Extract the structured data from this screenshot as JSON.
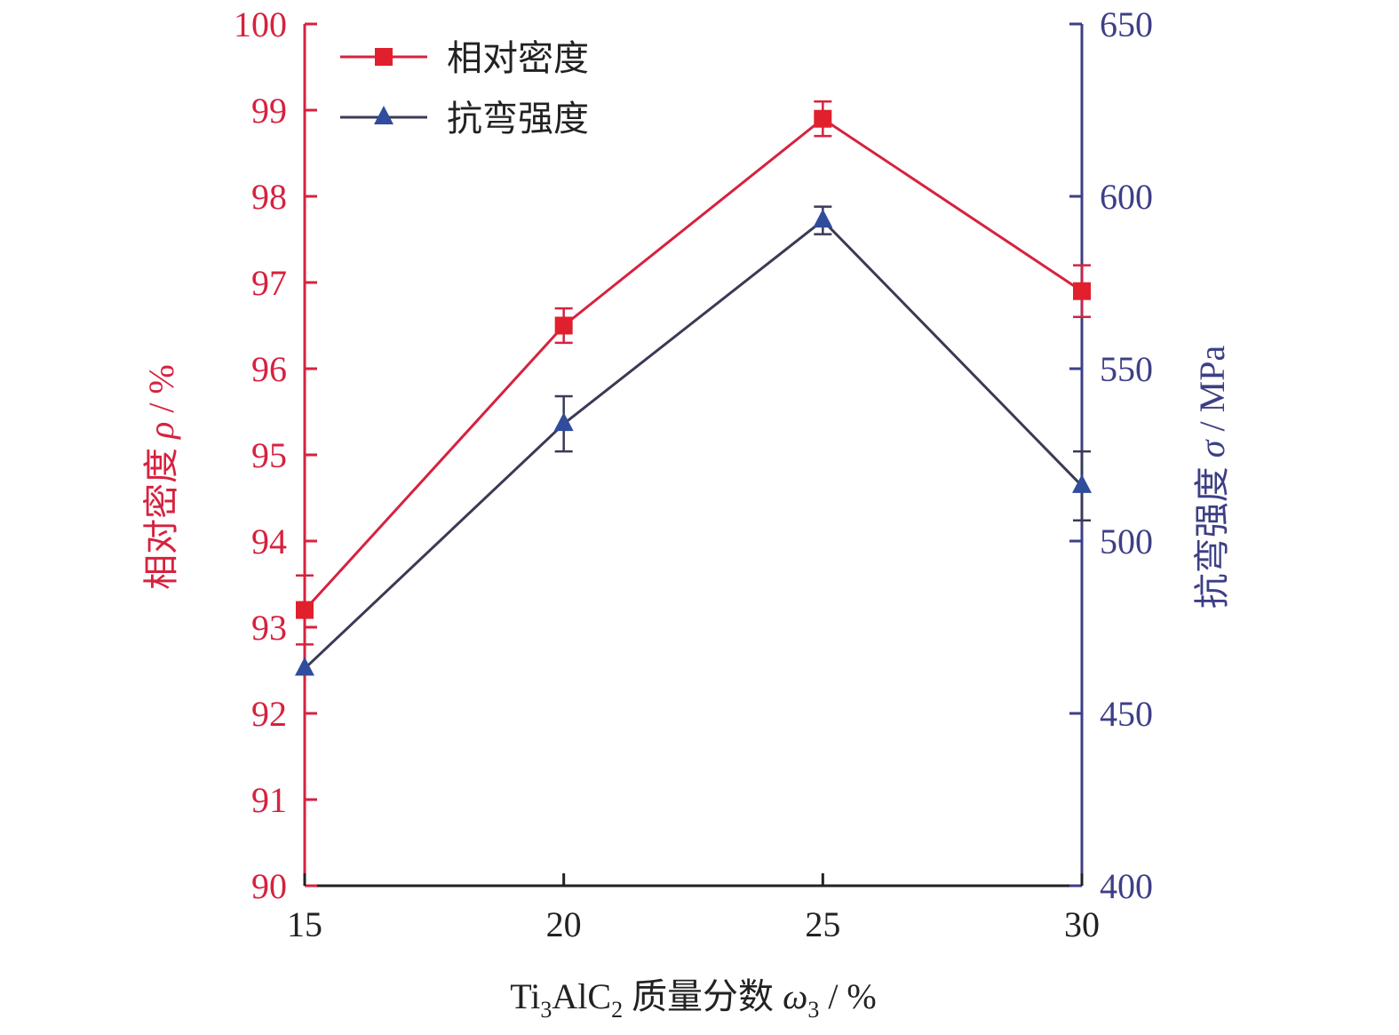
{
  "chart_data": {
    "type": "line",
    "x": [
      15,
      20,
      25,
      30
    ],
    "xlim": [
      15,
      30
    ],
    "x_ticks": [
      "15",
      "20",
      "25",
      "30"
    ],
    "xlabel": {
      "main": "Ti",
      "sub1": "3",
      "mid": "AlC",
      "sub2": "2",
      "rest": " 质量分数 ",
      "sym": "ω",
      "sub3": "3",
      "unit": " / %"
    },
    "y_left": {
      "label_text": "相对密度 ",
      "label_sym": "ρ",
      "label_unit": " / %",
      "lim": [
        90,
        100
      ],
      "ticks": [
        "90",
        "91",
        "92",
        "93",
        "94",
        "95",
        "96",
        "97",
        "98",
        "99",
        "100"
      ],
      "color": "#d6223f"
    },
    "y_right": {
      "label_text": "抗弯强度 ",
      "label_sym": "σ",
      "label_unit": " / MPa",
      "lim": [
        400,
        650
      ],
      "ticks": [
        "400",
        "450",
        "500",
        "550",
        "600",
        "650"
      ],
      "color": "#3d3f86"
    },
    "series": [
      {
        "name": "相对密度",
        "axis": "left",
        "marker": "square",
        "line_color": "#d6223f",
        "marker_color": "#e0202c",
        "values": [
          93.2,
          96.5,
          98.9,
          96.9
        ],
        "errors": [
          0.4,
          0.2,
          0.2,
          0.3
        ]
      },
      {
        "name": "抗弯强度",
        "axis": "right",
        "marker": "triangle",
        "line_color": "#3a3a56",
        "marker_color": "#2f4d9c",
        "values": [
          463,
          534,
          593,
          516
        ],
        "errors": [
          0,
          8,
          4,
          10
        ]
      }
    ],
    "legend_position": "top-left",
    "grid": false
  }
}
